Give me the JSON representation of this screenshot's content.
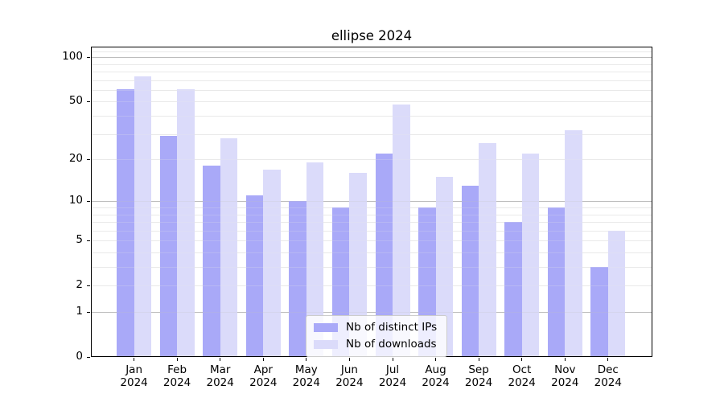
{
  "chart_data": {
    "type": "bar",
    "title": "ellipse 2024",
    "yscale": "log1p",
    "categories": [
      "Jan",
      "Feb",
      "Mar",
      "Apr",
      "May",
      "Jun",
      "Jul",
      "Aug",
      "Sep",
      "Oct",
      "Nov",
      "Dec"
    ],
    "category_year": "2024",
    "series": [
      {
        "name": "Nb of distinct IPs",
        "color": "#a9a9f8",
        "values": [
          61,
          29,
          18,
          11,
          10,
          9,
          22,
          9,
          13,
          7,
          9,
          3
        ]
      },
      {
        "name": "Nb of downloads",
        "color": "#dbdbfa",
        "values": [
          74,
          61,
          28,
          17,
          19,
          16,
          48,
          15,
          26,
          22,
          32,
          6
        ]
      }
    ],
    "yticks": [
      0,
      1,
      2,
      5,
      10,
      20,
      50,
      100
    ],
    "major_gridlines": [
      1,
      10,
      100
    ],
    "minor_gridlines": [
      2,
      3,
      4,
      5,
      6,
      7,
      8,
      9,
      20,
      30,
      40,
      50,
      60,
      70,
      80,
      90,
      110
    ],
    "ylim": [
      0,
      118
    ],
    "grid": true,
    "legend_position": "bottom-center"
  },
  "colors": {
    "background": "#ffffff",
    "spine": "#000000",
    "major_grid": "#bdbdbd",
    "minor_grid": "#e9e9e9",
    "legend_border": "#cccccc"
  }
}
